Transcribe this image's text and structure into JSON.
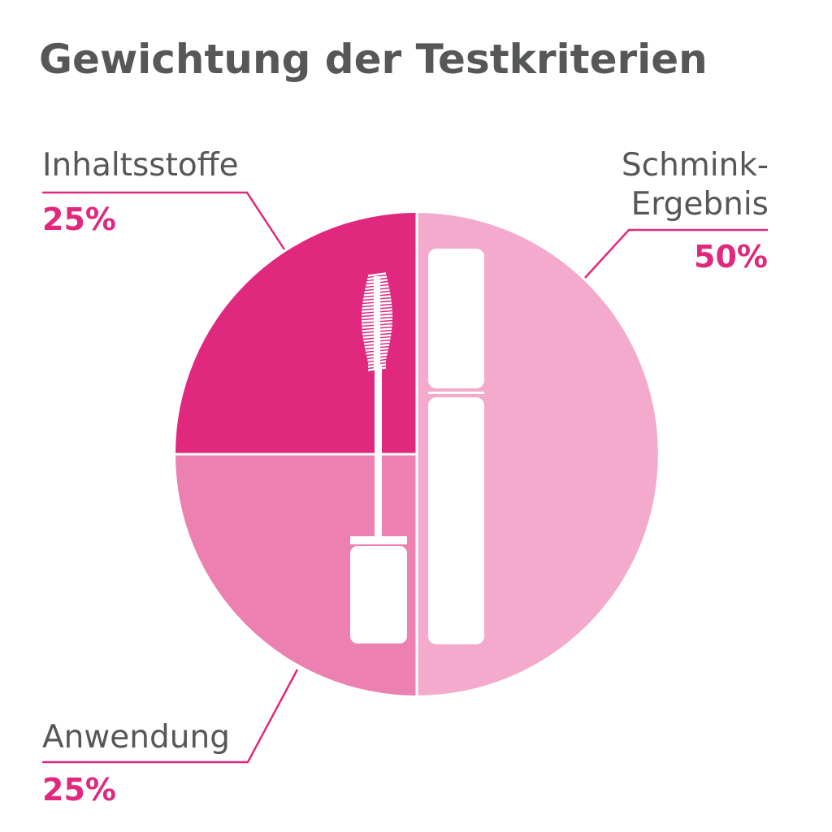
{
  "title": "Gewichtung der Testkriterien",
  "colors": {
    "text": "#555759",
    "accent": "#e0287e",
    "leader": "#e0287e",
    "divider": "#ffffff",
    "icon": "#ffffff"
  },
  "icon": "mascara-wand-and-tube-icon",
  "chart_data": {
    "type": "pie",
    "title": "Gewichtung der Testkriterien",
    "series": [
      {
        "slices": [
          {
            "label": "Inhaltsstoffe",
            "value": 25,
            "value_label": "25%",
            "color": "#e0287e"
          },
          {
            "label": "Anwendung",
            "value": 25,
            "value_label": "25%",
            "color": "#ec80b1"
          },
          {
            "label": "Schmink-Ergebnis",
            "label_lines": [
              "Schmink-",
              "Ergebnis"
            ],
            "value": 50,
            "value_label": "50%",
            "color": "#f3aacd"
          }
        ]
      }
    ],
    "legend": "none"
  }
}
